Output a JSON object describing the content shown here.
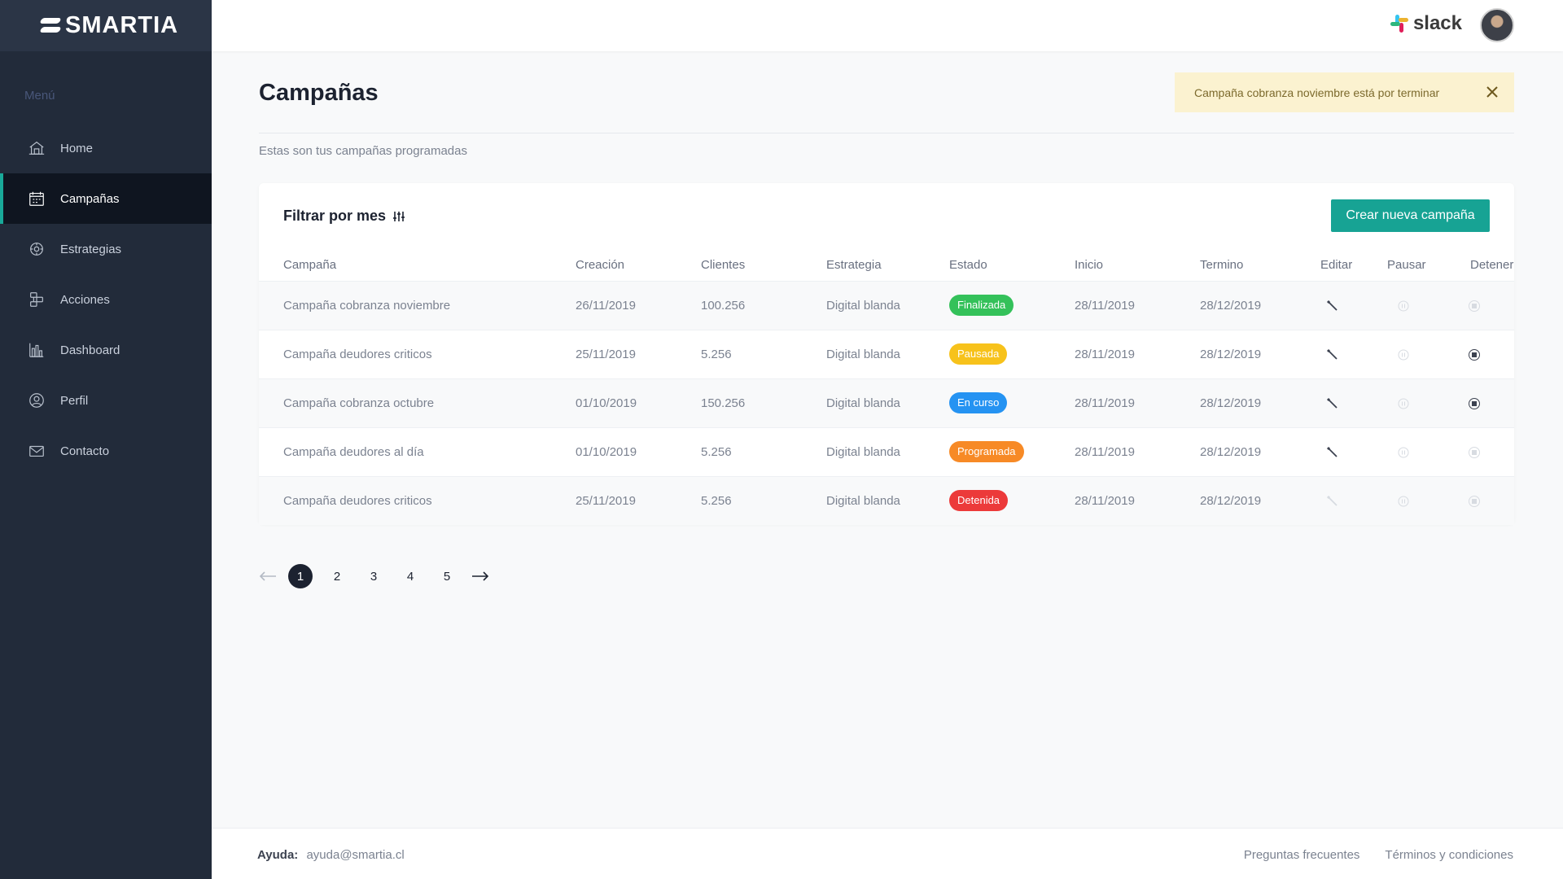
{
  "app": {
    "logo_text": "SMARTIA",
    "menu_title": "Menú",
    "menu": [
      {
        "label": "Home",
        "icon": "home-icon"
      },
      {
        "label": "Campañas",
        "icon": "calendar-icon",
        "active": true
      },
      {
        "label": "Estrategias",
        "icon": "strategy-icon"
      },
      {
        "label": "Acciones",
        "icon": "actions-icon"
      },
      {
        "label": "Dashboard",
        "icon": "chart-icon"
      },
      {
        "label": "Perfil",
        "icon": "user-icon"
      },
      {
        "label": "Contacto",
        "icon": "mail-icon"
      }
    ]
  },
  "topbar": {
    "slack_label": "slack",
    "avatar_icon": "user-avatar"
  },
  "page": {
    "title": "Campañas",
    "subtitle": "Estas son tus campañas programadas",
    "notice": "Campaña cobranza noviembre está por terminar"
  },
  "card": {
    "filter_label": "Filtrar por mes",
    "create_button": "Crear nueva campaña",
    "columns": [
      "Campaña",
      "Creación",
      "Clientes",
      "Estrategia",
      "Estado",
      "Inicio",
      "Termino",
      "Editar",
      "Pausar",
      "Detener"
    ],
    "rows": [
      {
        "name": "Campaña cobranza noviembre",
        "created": "26/11/2019",
        "clients": "100.256",
        "strategy": "Digital blanda",
        "status": "Finalizada",
        "status_color": "#34c15a",
        "start": "28/11/2019",
        "end": "28/12/2019",
        "edit_enabled": true,
        "pause_enabled": false,
        "stop_enabled": false
      },
      {
        "name": "Campaña deudores criticos",
        "created": "25/11/2019",
        "clients": "5.256",
        "strategy": "Digital blanda",
        "status": "Pausada",
        "status_color": "#f7c21b",
        "start": "28/11/2019",
        "end": "28/12/2019",
        "edit_enabled": true,
        "pause_enabled": false,
        "stop_enabled": true
      },
      {
        "name": "Campaña cobranza octubre",
        "created": "01/10/2019",
        "clients": "150.256",
        "strategy": "Digital blanda",
        "status": "En curso",
        "status_color": "#2593f2",
        "start": "28/11/2019",
        "end": "28/12/2019",
        "edit_enabled": true,
        "pause_enabled": false,
        "stop_enabled": true
      },
      {
        "name": "Campaña deudores al día",
        "created": "01/10/2019",
        "clients": "5.256",
        "strategy": "Digital blanda",
        "status": "Programada",
        "status_color": "#f78a26",
        "start": "28/11/2019",
        "end": "28/12/2019",
        "edit_enabled": true,
        "pause_enabled": false,
        "stop_enabled": false
      },
      {
        "name": "Campaña deudores criticos",
        "created": "25/11/2019",
        "clients": "5.256",
        "strategy": "Digital blanda",
        "status": "Detenida",
        "status_color": "#ec3a3a",
        "start": "28/11/2019",
        "end": "28/12/2019",
        "edit_enabled": false,
        "pause_enabled": false,
        "stop_enabled": false
      }
    ]
  },
  "pagination": {
    "pages": [
      "1",
      "2",
      "3",
      "4",
      "5"
    ],
    "current": "1"
  },
  "footer": {
    "help_label": "Ayuda:",
    "help_email": "ayuda@smartia.cl",
    "links": [
      "Preguntas frecuentes",
      "Términos y condiciones"
    ]
  },
  "colors": {
    "sidebar_bg": "#222b3a",
    "accent": "#17a394",
    "notice_bg": "#fbf2d0"
  }
}
